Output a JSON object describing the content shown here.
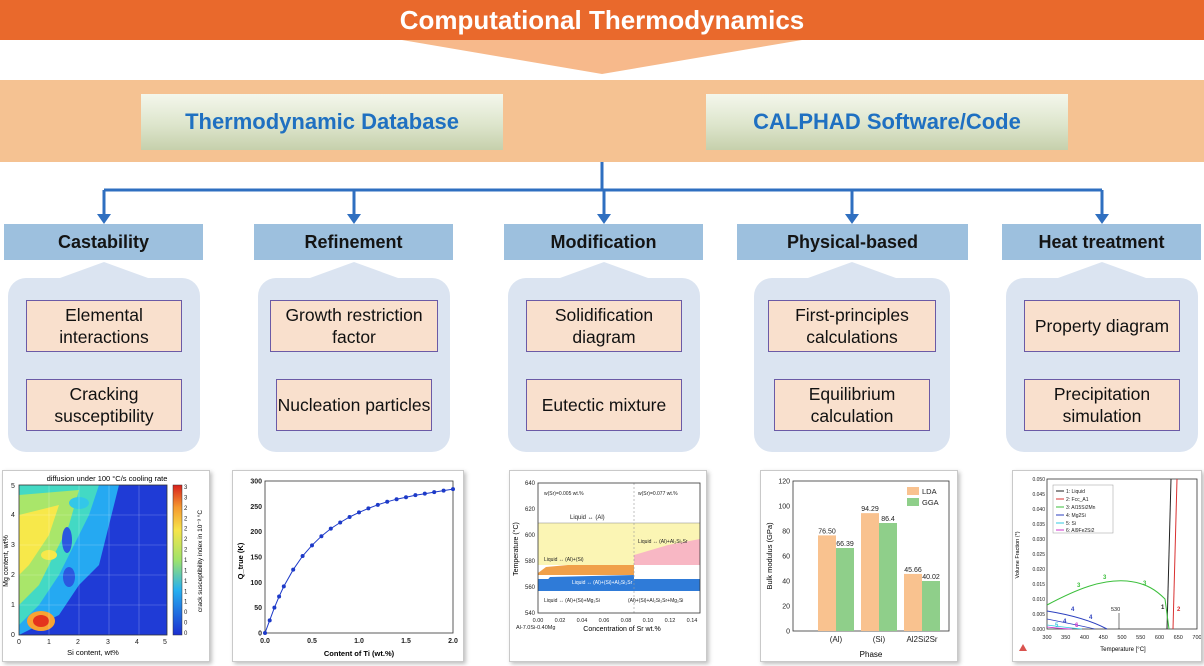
{
  "banner": {
    "title": "Computational Thermodynamics"
  },
  "tools": [
    {
      "label": "Thermodynamic Database"
    },
    {
      "label": "CALPHAD Software/Code"
    }
  ],
  "categories": [
    {
      "title": "Castability",
      "items": [
        "Elemental interactions",
        "Cracking susceptibility"
      ]
    },
    {
      "title": "Refinement",
      "items": [
        "Growth restriction factor",
        "Nucleation particles"
      ]
    },
    {
      "title": "Modification",
      "items": [
        "Solidification diagram",
        "Eutectic mixture"
      ]
    },
    {
      "title": "Physical-based",
      "items": [
        "First-principles calculations",
        "Equilibrium calculation"
      ]
    },
    {
      "title": "Heat treatment",
      "items": [
        "Property diagram",
        "Precipitation simulation"
      ]
    }
  ],
  "colors": {
    "banner": "#e9692c",
    "band": "#f5c292",
    "category": "#9dc0de",
    "panel": "#dbe4f1",
    "item": "#f9e0cd",
    "tool_text": "#1f70c1",
    "connector": "#2f6fc0"
  },
  "thumbnails": {
    "castability": {
      "title": "diffusion under 100 °C/s cooling rate",
      "xlabel": "Si content, wt%",
      "ylabel": "Mg content, wt%",
      "colorbar_label": "crack susceptibility index in 10⁻³ °C",
      "xticks": [
        "0",
        "1",
        "2",
        "3",
        "4",
        "5"
      ],
      "yticks": [
        "0",
        "1",
        "2",
        "3",
        "4",
        "5"
      ],
      "cbticks": [
        "3",
        "3",
        "2",
        "2",
        "2",
        "2",
        "2",
        "1",
        "1",
        "1",
        "1",
        "1",
        "0",
        "0",
        "0"
      ]
    },
    "refinement": {
      "xlabel": "Content of Ti (wt.%)",
      "ylabel": "Q_true (K)",
      "xticks": [
        "0.0",
        "0.5",
        "1.0",
        "1.5",
        "2.0"
      ],
      "yticks": [
        "0",
        "50",
        "100",
        "150",
        "200",
        "250",
        "300"
      ]
    },
    "modification": {
      "xlabel": "Concentration of Sr wt.%",
      "ylabel": "Temperature (°C)",
      "alloy": "Al-7.0Si-0.40Mg",
      "xticks": [
        "0.00",
        "0.02",
        "0.04",
        "0.06",
        "0.08",
        "0.10",
        "0.12",
        "0.14"
      ],
      "yticks": [
        "540",
        "560",
        "580",
        "600",
        "620",
        "640"
      ],
      "annotations": [
        "w(Sr)=0.005 wt.%",
        "w(Sr)=0.077 wt.%",
        "Liquid ↔ (Al)",
        "Liquid ↔ (Al)+Al₂Si₂Sr",
        "Liquid ↔ (Al)+(Si)",
        "Liquid ↔ (Al)+(Si)+Al₂Si₂Sr",
        "Liquid ↔ (Al)+(Si)+Mg₂Si",
        "(Al)+(Si)+Al₂Si₂Sr+Mg₂Si"
      ]
    },
    "physical": {
      "xlabel": "Phase",
      "ylabel": "Bulk modulus (GPa)",
      "yticks": [
        "0",
        "20",
        "40",
        "60",
        "80",
        "100",
        "120"
      ]
    },
    "heat": {
      "xlabel": "Temperature [°C]",
      "ylabel": "Volume Fraction (*)",
      "xticks": [
        "300",
        "350",
        "400",
        "450",
        "500",
        "550",
        "600",
        "650",
        "700"
      ],
      "yticks": [
        "0.000",
        "0.005",
        "0.010",
        "0.015",
        "0.020",
        "0.025",
        "0.030",
        "0.035",
        "0.040",
        "0.045",
        "0.050"
      ],
      "legend": [
        "1: Liquid",
        "2: Fcc_A1",
        "3: Al15Si2Mn",
        "4: Mg2Si",
        "5: Si",
        "6: Al9Fe2Si2"
      ],
      "annotation": "530",
      "curve_labels": [
        "1",
        "2",
        "3",
        "3",
        "3",
        "4",
        "4",
        "4",
        "5",
        "6"
      ]
    }
  },
  "chart_data": [
    {
      "type": "bar",
      "categories": [
        "(Al)",
        "(Si)",
        "Al2Si2Sr"
      ],
      "series": [
        {
          "name": "LDA",
          "values": [
            76.5,
            94.29,
            45.66
          ]
        },
        {
          "name": "GGA",
          "values": [
            66.39,
            86.4,
            40.02
          ]
        }
      ],
      "xlabel": "Phase",
      "ylabel": "Bulk modulus (GPa)",
      "ylim": [
        0,
        120
      ],
      "legend": "top-right",
      "colors": [
        "#f9c28f",
        "#8fcf8a"
      ]
    },
    {
      "type": "line",
      "x": [
        0.0,
        0.05,
        0.1,
        0.15,
        0.2,
        0.3,
        0.4,
        0.5,
        0.6,
        0.7,
        0.8,
        0.9,
        1.0,
        1.1,
        1.2,
        1.3,
        1.4,
        1.5,
        1.6,
        1.7,
        1.8,
        1.9,
        2.0
      ],
      "y": [
        0,
        25,
        50,
        72,
        92,
        125,
        152,
        173,
        191,
        206,
        218,
        229,
        238,
        246,
        253,
        259,
        264,
        268,
        272,
        275,
        278,
        281,
        284
      ],
      "xlabel": "Content of Ti (wt.%)",
      "ylabel": "Q_true (K)",
      "xlim": [
        0,
        2.0
      ],
      "ylim": [
        0,
        300
      ]
    }
  ]
}
